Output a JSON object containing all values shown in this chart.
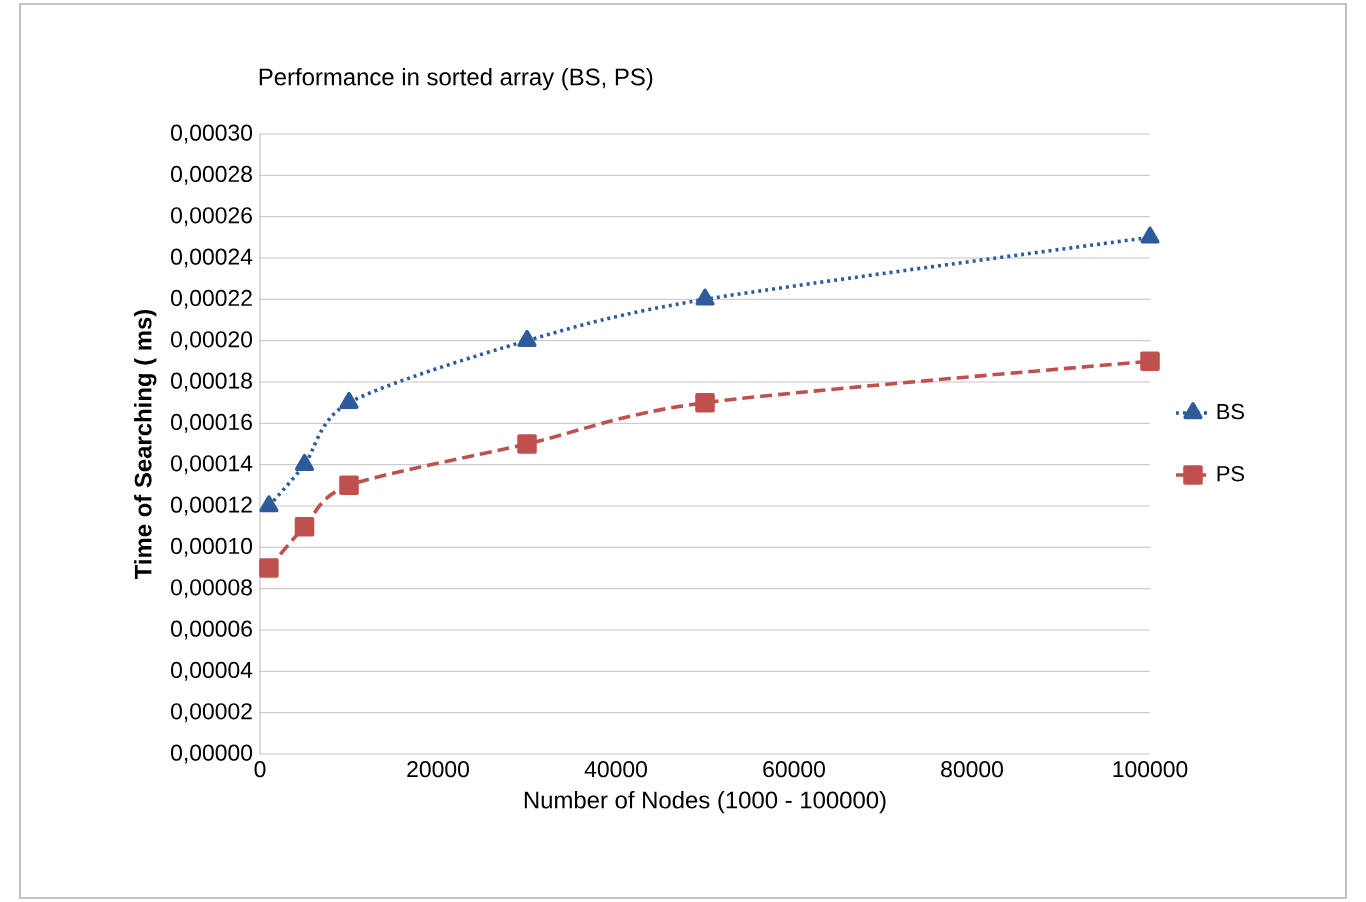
{
  "chart_data": {
    "type": "line",
    "title": "Performance in sorted array (BS, PS)",
    "xlabel": "Number of Nodes (1000 - 100000)",
    "ylabel": "Time of Searching ( ms)",
    "x": [
      1000,
      5000,
      10000,
      30000,
      50000,
      100000
    ],
    "series": [
      {
        "name": "BS",
        "color": "#2e5b9a",
        "values": [
          0.00012,
          0.00014,
          0.00017,
          0.0002,
          0.00022,
          0.00025
        ],
        "marker": "triangle",
        "line_style": "dotted"
      },
      {
        "name": "PS",
        "color": "#c0504d",
        "values": [
          9e-05,
          0.00011,
          0.00013,
          0.00015,
          0.00017,
          0.00019
        ],
        "marker": "square",
        "line_style": "dashed"
      }
    ],
    "xlim": [
      0,
      100000
    ],
    "xticks": [
      0,
      20000,
      40000,
      60000,
      80000,
      100000
    ],
    "ylim": [
      0,
      0.0003
    ],
    "yticks": [
      {
        "value": 0,
        "label": "0,00000"
      },
      {
        "value": 2e-05,
        "label": "0,00002"
      },
      {
        "value": 4e-05,
        "label": "0,00004"
      },
      {
        "value": 6e-05,
        "label": "0,00006"
      },
      {
        "value": 8e-05,
        "label": "0,00008"
      },
      {
        "value": 0.0001,
        "label": "0,00010"
      },
      {
        "value": 0.00012,
        "label": "0,00012"
      },
      {
        "value": 0.00014,
        "label": "0,00014"
      },
      {
        "value": 0.00016,
        "label": "0,00016"
      },
      {
        "value": 0.00018,
        "label": "0,00018"
      },
      {
        "value": 0.0002,
        "label": "0,00020"
      },
      {
        "value": 0.00022,
        "label": "0,00022"
      },
      {
        "value": 0.00024,
        "label": "0,00024"
      },
      {
        "value": 0.00026,
        "label": "0,00026"
      },
      {
        "value": 0.00028,
        "label": "0,00028"
      },
      {
        "value": 0.0003,
        "label": "0,00030"
      }
    ],
    "grid": "y",
    "legend": "right"
  }
}
